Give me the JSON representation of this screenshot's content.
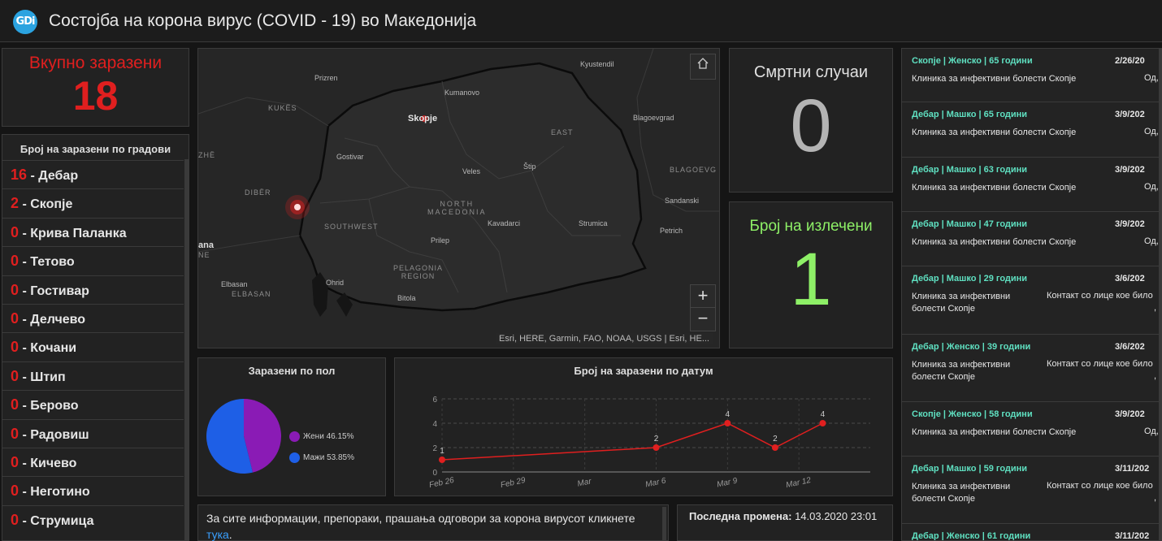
{
  "header": {
    "logo_text": "GDi",
    "title": "Состојба на корона вирус (COVID - 19) во Македонија"
  },
  "total": {
    "label": "Вкупно заразени",
    "value": "18"
  },
  "cities": {
    "title": "Број на заразени по градови",
    "items": [
      {
        "count": "16",
        "name": "Дебар"
      },
      {
        "count": "2",
        "name": "Скопје"
      },
      {
        "count": "0",
        "name": "Крива Паланка"
      },
      {
        "count": "0",
        "name": "Тетово"
      },
      {
        "count": "0",
        "name": "Гостивар"
      },
      {
        "count": "0",
        "name": "Делчево"
      },
      {
        "count": "0",
        "name": "Кочани"
      },
      {
        "count": "0",
        "name": "Штип"
      },
      {
        "count": "0",
        "name": "Берово"
      },
      {
        "count": "0",
        "name": "Радовиш"
      },
      {
        "count": "0",
        "name": "Кичево"
      },
      {
        "count": "0",
        "name": "Неготино"
      },
      {
        "count": "0",
        "name": "Струмица"
      }
    ]
  },
  "map": {
    "labels": {
      "prizren": "Prizren",
      "kukes": "KUKËS",
      "kumanovo": "Kumanovo",
      "skopje": "Skopje",
      "kyustendil": "Kyustendil",
      "east": "EAST",
      "blagoevgrad": "Blagoevgrad",
      "gostivar": "Gostivar",
      "zhe": "ZHË",
      "veles": "Veles",
      "stip": "Štip",
      "blagoevg_region": "BLAGOEVG",
      "diber": "DIBËR",
      "north_macedonia": "NORTH\nMACEDONIA",
      "kavadarci": "Kavadarci",
      "strumica": "Strumica",
      "sandanski": "Sandanski",
      "southwest": "SOUTHWEST",
      "prilep": "Prilep",
      "petrich": "Petrich",
      "ana": "ana",
      "ne": "NE",
      "pelagonia": "PELAGONIA\nREGION",
      "ohrid": "Ohrid",
      "elbasan": "Elbasan",
      "elbasan_region": "ELBASAN",
      "bitola": "Bitola"
    },
    "home_icon": "home-icon",
    "zoom_in": "+",
    "zoom_out": "−",
    "attribution": "Esri, HERE, Garmin, FAO, NOAA, USGS | Esri, HE..."
  },
  "deaths": {
    "label": "Смртни случаи",
    "value": "0"
  },
  "recovered": {
    "label": "Број на излечени",
    "value": "1"
  },
  "pie": {
    "title": "Заразени по пол",
    "legend": [
      {
        "label": "Жени",
        "pct": "46.15%",
        "color": "#8a1bb5"
      },
      {
        "label": "Мажи",
        "pct": "53.85%",
        "color": "#1e5fe6"
      }
    ]
  },
  "line": {
    "title": "Број на заразени по датум"
  },
  "chart_data": [
    {
      "type": "pie",
      "title": "Заразени по пол",
      "categories": [
        "Жени",
        "Мажи"
      ],
      "values": [
        46.15,
        53.85
      ]
    },
    {
      "type": "line",
      "title": "Број на заразени по датум",
      "x": [
        "2020-02-26",
        "2020-03-06",
        "2020-03-09",
        "2020-03-11",
        "2020-03-13"
      ],
      "y": [
        1,
        2,
        4,
        2,
        4
      ],
      "data_labels": [
        "1",
        "2",
        "4",
        "2",
        "4"
      ],
      "x_ticks": [
        "Feb 26",
        "Feb 29",
        "Mar",
        "Mar 6",
        "Mar 9",
        "Mar 12"
      ],
      "x_tick_dates": [
        "2020-02-26",
        "2020-02-29",
        "2020-03-03",
        "2020-03-06",
        "2020-03-09",
        "2020-03-12"
      ],
      "y_ticks": [
        0,
        2,
        4,
        6
      ],
      "xlim": [
        "2020-02-26",
        "2020-03-15"
      ],
      "ylim": [
        0,
        6
      ],
      "grid": true,
      "color": "#e01f1f"
    }
  ],
  "info": {
    "text": "За сите информации, препораки, прашања одговори за корона вирусот кликнете",
    "link_text": "тука",
    "suffix": "."
  },
  "updated": {
    "label": "Последна промена:",
    "value": "14.03.2020 23:01"
  },
  "cases": [
    {
      "head": "Скопје | Женско | 65 години",
      "date": "2/26/20",
      "line1": "Клиника за инфективни болести Скопје",
      "extra": "Од,"
    },
    {
      "head": "Дебар | Машко | 65 години",
      "date": "3/9/202",
      "line1": "Клиника за инфективни болести Скопје",
      "extra": "Од,"
    },
    {
      "head": "Дебар | Машко | 63 години",
      "date": "3/9/202",
      "line1": "Клиника за инфективни болести Скопје",
      "extra": "Од,"
    },
    {
      "head": "Дебар | Машко | 47 години",
      "date": "3/9/202",
      "line1": "Клиника за инфективни болести Скопје",
      "extra": "Од,"
    },
    {
      "head": "Дебар | Машко | 29 години",
      "date": "3/6/202",
      "line1": "Клиника за инфективни",
      "line2": "болести Скопје",
      "extra": "Контакт со лице кое било",
      "extra2": ","
    },
    {
      "head": "Дебар | Женско | 39 години",
      "date": "3/6/202",
      "line1": "Клиника за инфективни",
      "line2": "болести Скопје",
      "extra": "Контакт со лице кое било",
      "extra2": ","
    },
    {
      "head": "Скопје | Женско | 58 години",
      "date": "3/9/202",
      "line1": "Клиника за инфективни болести Скопје",
      "extra": "Од,"
    },
    {
      "head": "Дебар | Машко | 59 години",
      "date": "3/11/202",
      "line1": "Клиника за инфективни",
      "line2": "болести Скопје",
      "extra": "Контакт со лице кое било",
      "extra2": ","
    },
    {
      "head": "Дебар | Женско | 61 години",
      "date": "3/11/202"
    }
  ]
}
